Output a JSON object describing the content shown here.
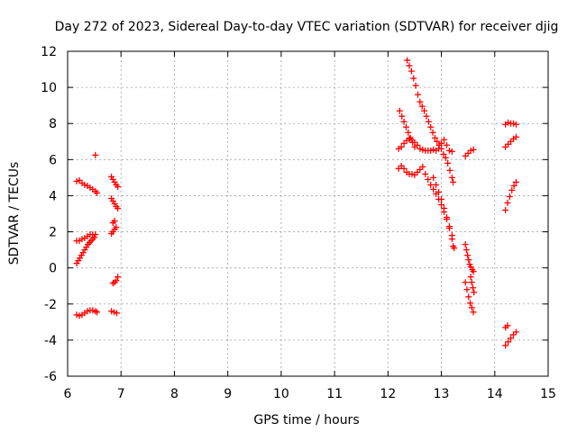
{
  "chart_data": {
    "type": "scatter",
    "title": "Day 272 of 2023, Sidereal Day-to-day VTEC variation (SDTVAR) for receiver djig",
    "xlabel": "GPS time / hours",
    "ylabel": "SDTVAR / TECUs",
    "xlim": [
      6,
      15
    ],
    "ylim": [
      -6,
      12
    ],
    "xticks": [
      6,
      7,
      8,
      9,
      10,
      11,
      12,
      13,
      14,
      15
    ],
    "yticks": [
      -6,
      -4,
      -2,
      0,
      2,
      4,
      6,
      8,
      10,
      12
    ],
    "grid": true,
    "marker": "plus",
    "color": "#ff0000",
    "series": [
      {
        "name": "SDTVAR",
        "points": [
          [
            6.17,
            4.8
          ],
          [
            6.22,
            4.85
          ],
          [
            6.27,
            4.7
          ],
          [
            6.32,
            4.6
          ],
          [
            6.37,
            4.55
          ],
          [
            6.42,
            4.45
          ],
          [
            6.47,
            4.35
          ],
          [
            6.52,
            4.25
          ],
          [
            6.55,
            4.15
          ],
          [
            6.52,
            6.25
          ],
          [
            6.17,
            1.5
          ],
          [
            6.22,
            1.5
          ],
          [
            6.27,
            1.6
          ],
          [
            6.32,
            1.65
          ],
          [
            6.37,
            1.75
          ],
          [
            6.42,
            1.85
          ],
          [
            6.47,
            1.85
          ],
          [
            6.52,
            1.85
          ],
          [
            6.17,
            0.25
          ],
          [
            6.2,
            0.4
          ],
          [
            6.23,
            0.55
          ],
          [
            6.26,
            0.7
          ],
          [
            6.29,
            0.85
          ],
          [
            6.32,
            1.0
          ],
          [
            6.35,
            1.15
          ],
          [
            6.38,
            1.3
          ],
          [
            6.41,
            1.4
          ],
          [
            6.44,
            1.5
          ],
          [
            6.47,
            1.6
          ],
          [
            6.5,
            1.7
          ],
          [
            6.17,
            -2.6
          ],
          [
            6.22,
            -2.65
          ],
          [
            6.27,
            -2.6
          ],
          [
            6.32,
            -2.5
          ],
          [
            6.37,
            -2.4
          ],
          [
            6.42,
            -2.35
          ],
          [
            6.47,
            -2.35
          ],
          [
            6.52,
            -2.4
          ],
          [
            6.55,
            -2.45
          ],
          [
            6.82,
            5.05
          ],
          [
            6.85,
            4.9
          ],
          [
            6.88,
            4.75
          ],
          [
            6.91,
            4.6
          ],
          [
            6.94,
            4.5
          ],
          [
            6.82,
            3.85
          ],
          [
            6.85,
            3.7
          ],
          [
            6.88,
            3.55
          ],
          [
            6.91,
            3.4
          ],
          [
            6.94,
            3.3
          ],
          [
            6.82,
            1.9
          ],
          [
            6.85,
            2.0
          ],
          [
            6.88,
            2.15
          ],
          [
            6.91,
            2.25
          ],
          [
            6.85,
            2.5
          ],
          [
            6.88,
            2.6
          ],
          [
            6.85,
            -0.85
          ],
          [
            6.88,
            -0.8
          ],
          [
            6.91,
            -0.7
          ],
          [
            6.94,
            -0.5
          ],
          [
            6.82,
            -2.4
          ],
          [
            6.87,
            -2.45
          ],
          [
            6.92,
            -2.5
          ],
          [
            12.22,
            8.7
          ],
          [
            12.26,
            8.4
          ],
          [
            12.3,
            8.1
          ],
          [
            12.34,
            7.8
          ],
          [
            12.38,
            7.5
          ],
          [
            12.42,
            7.2
          ],
          [
            12.46,
            6.95
          ],
          [
            12.5,
            6.7
          ],
          [
            12.2,
            6.6
          ],
          [
            12.25,
            6.7
          ],
          [
            12.3,
            6.9
          ],
          [
            12.35,
            7.05
          ],
          [
            12.4,
            7.15
          ],
          [
            12.45,
            7.1
          ],
          [
            12.5,
            6.95
          ],
          [
            12.55,
            6.8
          ],
          [
            12.6,
            6.6
          ],
          [
            12.65,
            6.55
          ],
          [
            12.7,
            6.5
          ],
          [
            12.75,
            6.5
          ],
          [
            12.8,
            6.5
          ],
          [
            12.85,
            6.55
          ],
          [
            12.9,
            6.5
          ],
          [
            12.95,
            6.6
          ],
          [
            13.0,
            6.9
          ],
          [
            13.05,
            7.1
          ],
          [
            13.1,
            6.8
          ],
          [
            13.15,
            6.5
          ],
          [
            13.2,
            6.45
          ],
          [
            12.36,
            11.5
          ],
          [
            12.4,
            11.2
          ],
          [
            12.44,
            10.9
          ],
          [
            12.48,
            10.5
          ],
          [
            12.52,
            10.1
          ],
          [
            12.56,
            9.6
          ],
          [
            12.6,
            9.2
          ],
          [
            12.64,
            8.95
          ],
          [
            12.68,
            8.7
          ],
          [
            12.72,
            8.4
          ],
          [
            12.76,
            8.1
          ],
          [
            12.8,
            7.8
          ],
          [
            12.84,
            7.5
          ],
          [
            12.88,
            7.2
          ],
          [
            12.92,
            7.0
          ],
          [
            12.96,
            6.8
          ],
          [
            13.0,
            6.6
          ],
          [
            13.04,
            6.3
          ],
          [
            13.08,
            6.1
          ],
          [
            13.12,
            5.8
          ],
          [
            13.16,
            5.4
          ],
          [
            13.2,
            5.0
          ],
          [
            13.22,
            4.75
          ],
          [
            12.2,
            5.5
          ],
          [
            12.25,
            5.65
          ],
          [
            12.3,
            5.5
          ],
          [
            12.35,
            5.3
          ],
          [
            12.4,
            5.2
          ],
          [
            12.45,
            5.2
          ],
          [
            12.5,
            5.15
          ],
          [
            12.55,
            5.3
          ],
          [
            12.6,
            5.45
          ],
          [
            12.65,
            5.6
          ],
          [
            12.7,
            5.2
          ],
          [
            12.75,
            4.9
          ],
          [
            12.8,
            4.6
          ],
          [
            12.85,
            4.35
          ],
          [
            12.9,
            4.1
          ],
          [
            12.95,
            3.8
          ],
          [
            13.0,
            3.5
          ],
          [
            13.05,
            3.1
          ],
          [
            13.1,
            2.7
          ],
          [
            13.15,
            2.2
          ],
          [
            13.2,
            1.6
          ],
          [
            13.22,
            1.2
          ],
          [
            12.85,
            5.0
          ],
          [
            12.9,
            4.6
          ],
          [
            12.95,
            4.2
          ],
          [
            13.0,
            3.8
          ],
          [
            13.05,
            3.3
          ],
          [
            13.1,
            2.8
          ],
          [
            13.15,
            2.3
          ],
          [
            13.2,
            1.8
          ],
          [
            13.24,
            1.1
          ],
          [
            13.45,
            6.2
          ],
          [
            13.5,
            6.35
          ],
          [
            13.55,
            6.5
          ],
          [
            13.6,
            6.55
          ],
          [
            13.45,
            1.3
          ],
          [
            13.47,
            1.0
          ],
          [
            13.49,
            0.7
          ],
          [
            13.51,
            0.45
          ],
          [
            13.53,
            0.2
          ],
          [
            13.55,
            0.05
          ],
          [
            13.58,
            -0.1
          ],
          [
            13.6,
            -0.2
          ],
          [
            13.45,
            -0.8
          ],
          [
            13.48,
            -1.2
          ],
          [
            13.51,
            -1.6
          ],
          [
            13.54,
            -1.95
          ],
          [
            13.57,
            -2.2
          ],
          [
            13.6,
            -2.45
          ],
          [
            13.55,
            -0.5
          ],
          [
            13.57,
            -0.8
          ],
          [
            13.59,
            -1.1
          ],
          [
            13.61,
            -1.35
          ],
          [
            14.2,
            7.95
          ],
          [
            14.25,
            8.05
          ],
          [
            14.3,
            8.0
          ],
          [
            14.35,
            8.0
          ],
          [
            14.4,
            7.95
          ],
          [
            14.2,
            6.7
          ],
          [
            14.25,
            6.85
          ],
          [
            14.3,
            7.0
          ],
          [
            14.35,
            7.15
          ],
          [
            14.4,
            7.25
          ],
          [
            14.2,
            3.2
          ],
          [
            14.24,
            3.6
          ],
          [
            14.28,
            3.95
          ],
          [
            14.32,
            4.3
          ],
          [
            14.36,
            4.55
          ],
          [
            14.4,
            4.75
          ],
          [
            14.2,
            -3.3
          ],
          [
            14.24,
            -3.2
          ],
          [
            14.2,
            -4.3
          ],
          [
            14.25,
            -4.1
          ],
          [
            14.3,
            -3.9
          ],
          [
            14.35,
            -3.7
          ],
          [
            14.4,
            -3.55
          ]
        ]
      }
    ]
  }
}
